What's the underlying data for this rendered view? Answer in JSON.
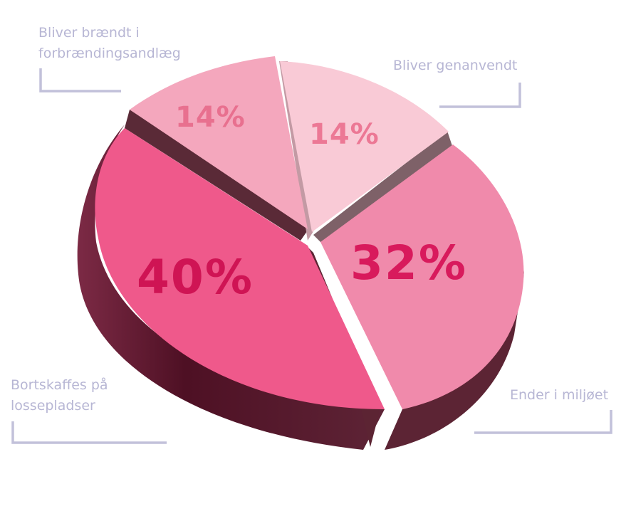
{
  "chart_data": {
    "type": "pie",
    "slices": [
      {
        "label": "Bliver brændt i forbrændingsandlæg",
        "label_lines": [
          "Bliver brændt i",
          "forbrændingsandlæg"
        ],
        "value": 14,
        "value_label": "14%",
        "color": "#f4a7bd",
        "text_color": "#e8708f"
      },
      {
        "label": "Bliver genanvendt",
        "label_lines": [
          "Bliver genanvendt"
        ],
        "value": 14,
        "value_label": "14%",
        "color": "#f9cad6",
        "text_color": "#ec7895"
      },
      {
        "label": "Ender i miljøet",
        "label_lines": [
          "Ender i miljøet"
        ],
        "value": 32,
        "value_label": "32%",
        "color": "#f08aab",
        "text_color": "#d81a5c"
      },
      {
        "label": "Bortskaffes på lossepladser",
        "label_lines": [
          "Bortskaffes på",
          "lossepladser"
        ],
        "value": 40,
        "value_label": "40%",
        "color": "#ef598b",
        "text_color": "#cf1454"
      }
    ],
    "style": "3d-exploded",
    "label_color": "#b7b6d4"
  }
}
